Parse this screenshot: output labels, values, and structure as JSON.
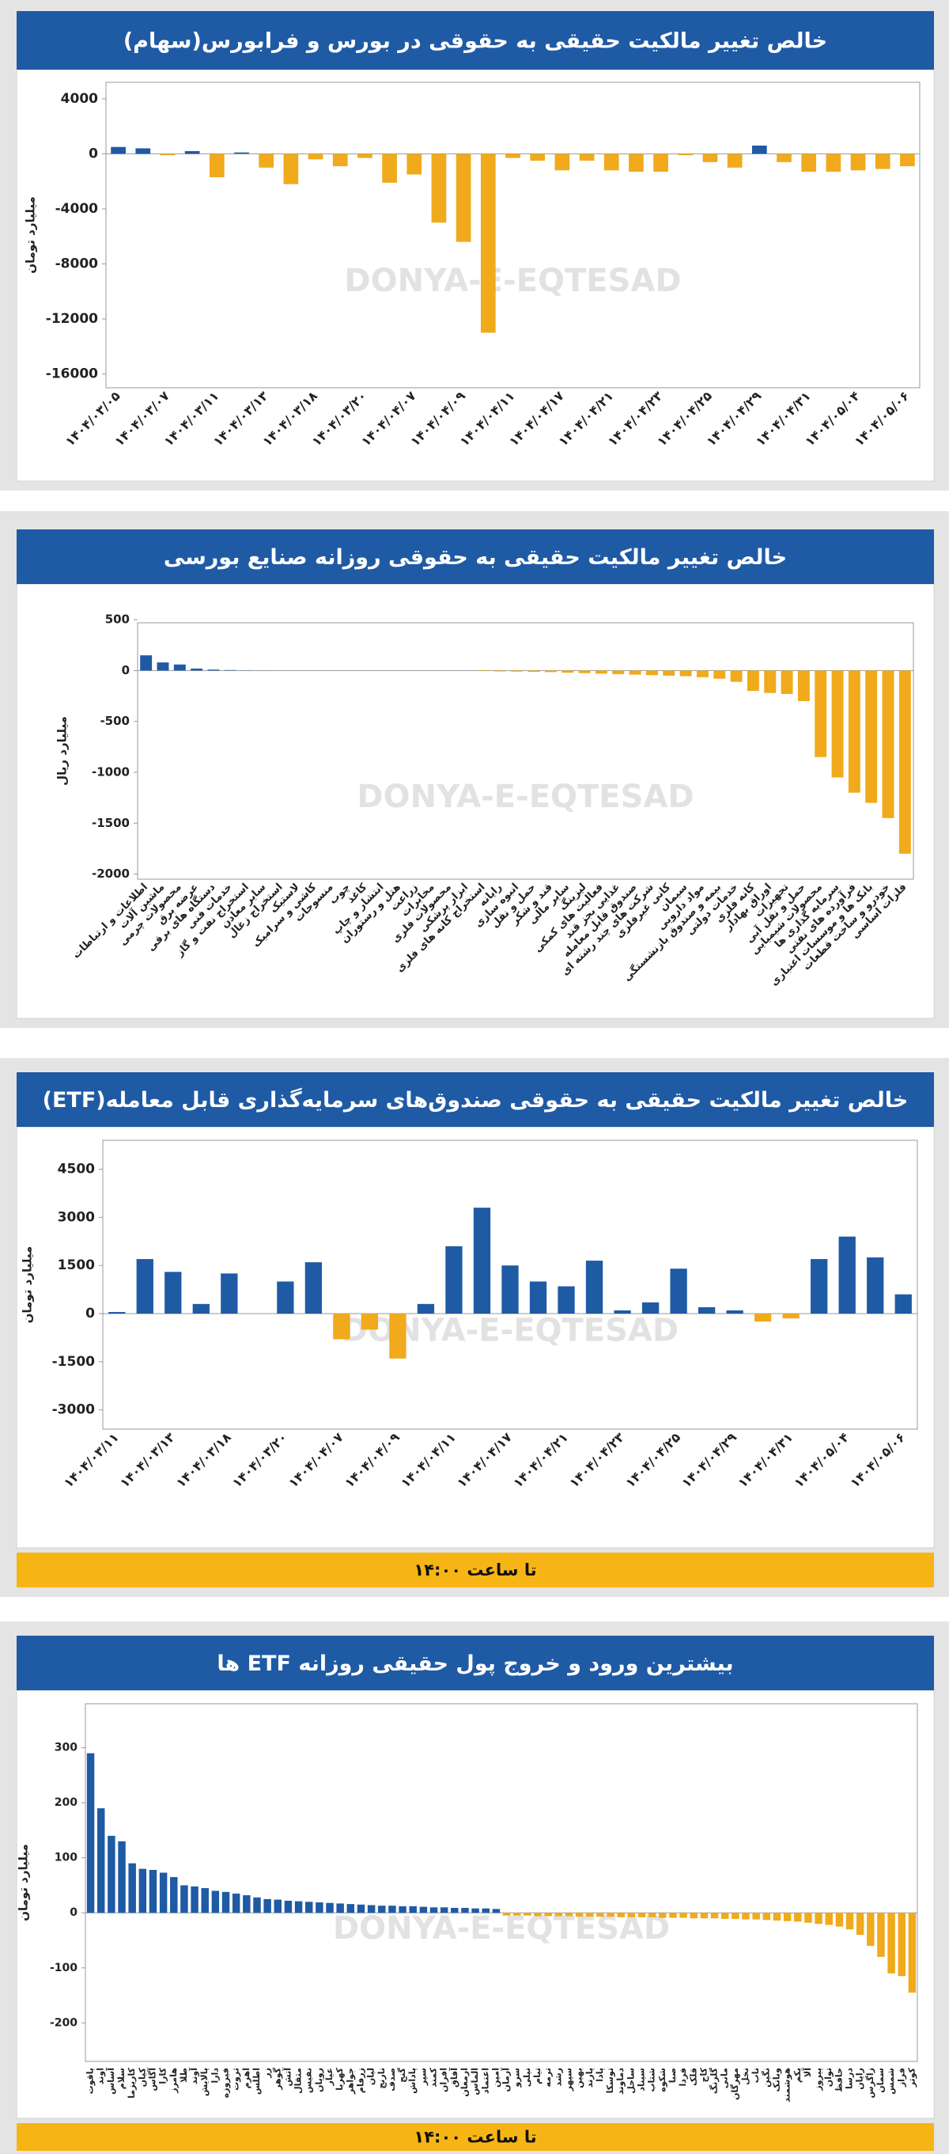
{
  "watermark": "DONYA-E-EQTESAD",
  "chart_data": [
    {
      "type": "bar",
      "title": "خالص تغییر مالکیت حقیقی به حقوقی در بورس و فرابورس(سهام)",
      "y_label": "میلیارد تومان",
      "categories": [
        "۱۴۰۴/۰۳/۰۵",
        null,
        "۱۴۰۴/۰۳/۰۷",
        null,
        "۱۴۰۴/۰۳/۱۱",
        null,
        "۱۴۰۴/۰۳/۱۳",
        null,
        "۱۴۰۴/۰۳/۱۸",
        null,
        "۱۴۰۴/۰۳/۲۰",
        null,
        "۱۴۰۴/۰۴/۰۷",
        null,
        "۱۴۰۴/۰۴/۰۹",
        null,
        "۱۴۰۴/۰۴/۱۱",
        null,
        "۱۴۰۴/۰۴/۱۷",
        null,
        "۱۴۰۴/۰۴/۲۱",
        null,
        "۱۴۰۴/۰۴/۲۳",
        null,
        "۱۴۰۴/۰۴/۲۵",
        null,
        "۱۴۰۴/۰۴/۲۹",
        null,
        "۱۴۰۴/۰۴/۳۱",
        null,
        "۱۴۰۴/۰۵/۰۴",
        null,
        "۱۴۰۴/۰۵/۰۶"
      ],
      "values": [
        500,
        400,
        -100,
        200,
        -1700,
        100,
        -1000,
        -2200,
        -400,
        -900,
        -300,
        -2100,
        -1500,
        -5000,
        -6400,
        -13000,
        -300,
        -500,
        -1200,
        -500,
        -1200,
        -1300,
        -1300,
        -100,
        -600,
        -1000,
        600,
        -600,
        -1300,
        -1300,
        -1200,
        -1100,
        -900
      ],
      "positive_color": "#1f5aa5",
      "negative_color": "#f0aa1c",
      "ylim": [
        -17000,
        5200
      ],
      "yticks": [
        4000,
        0,
        -4000,
        -8000,
        -12000,
        -16000
      ]
    },
    {
      "type": "bar",
      "title": "خالص تغییر مالکیت حقیقی به حقوقی روزانه صنایع بورسی",
      "y_label": "میلیارد ریال",
      "categories": [
        "اطلاعات و ارتباطات",
        "ماشین آلات",
        "محصولات چرمی",
        "عرضه برق",
        "دستگاه های برقی",
        "خدمات فنی",
        "استخراج نفت و گاز",
        "سایر معادن",
        "استخراج زغال",
        "لاستیک",
        "کاشی و سرامیک",
        "منسوجات",
        "چوب",
        "کاغذ",
        "انتشار و چاپ",
        "هتل و رستوران",
        "زراعت",
        "مخابرات",
        "محصولات فلزی",
        "ابزار پزشکی",
        "استخراج کانه های فلزی",
        "رایانه",
        "انبوه سازی",
        "حمل و نقل",
        "قند و شکر",
        "سایر مالی",
        "لیزینگ",
        "فعالیت های کمکی",
        "غذایی بجز قند",
        "صندوق قابل معامله",
        "شرکت های چند رشته ای",
        "کانی غیرفلزی",
        "سیمان",
        "مواد دارویی",
        "بیمه و صندوق بازنشستگی",
        "خدمات دولتی",
        "کانه فلزی",
        "اوراق بهادار",
        "تجهیزات",
        "حمل و نقل آبی",
        "محصولات شیمیایی",
        "سرمایه گذاری ها",
        "فرآورده های نفتی",
        "بانک ها و موسسات اعتباری",
        "خودرو و ساخت قطعات",
        "فلزات اساسی"
      ],
      "values": [
        150,
        80,
        60,
        20,
        10,
        5,
        2,
        1,
        0,
        0,
        0,
        0,
        0,
        0,
        0,
        0,
        0,
        0,
        0,
        0,
        -5,
        -8,
        -10,
        -12,
        -15,
        -20,
        -25,
        -30,
        -35,
        -40,
        -45,
        -50,
        -55,
        -65,
        -80,
        -110,
        -200,
        -220,
        -230,
        -300,
        -850,
        -1050,
        -1200,
        -1300,
        -1450,
        -1800
      ],
      "positive_color": "#1f5aa5",
      "negative_color": "#f0aa1c",
      "ylim": [
        -2050,
        470
      ],
      "yticks": [
        500,
        0,
        -500,
        -1000,
        -1500,
        -2000
      ]
    },
    {
      "type": "bar",
      "title": "خالص تغییر مالکیت حقیقی به حقوقی صندوق‌های سرمایه‌گذاری قابل معامله(ETF)",
      "y_label": "میلیارد تومان",
      "categories": [
        "۱۴۰۴/۰۳/۱۱",
        null,
        "۱۴۰۴/۰۳/۱۳",
        null,
        "۱۴۰۴/۰۳/۱۸",
        null,
        "۱۴۰۴/۰۳/۲۰",
        null,
        "۱۴۰۴/۰۴/۰۷",
        null,
        "۱۴۰۴/۰۴/۰۹",
        null,
        "۱۴۰۴/۰۴/۱۱",
        null,
        "۱۴۰۴/۰۴/۱۷",
        null,
        "۱۴۰۴/۰۴/۲۱",
        null,
        "۱۴۰۴/۰۴/۲۳",
        null,
        "۱۴۰۴/۰۴/۲۵",
        null,
        "۱۴۰۴/۰۴/۲۹",
        null,
        "۱۴۰۴/۰۴/۳۱",
        null,
        "۱۴۰۴/۰۵/۰۴",
        null,
        "۱۴۰۴/۰۵/۰۶"
      ],
      "values": [
        50,
        1700,
        1300,
        300,
        1250,
        0,
        1000,
        1600,
        -800,
        -500,
        -1400,
        300,
        2100,
        3300,
        1500,
        1000,
        850,
        1650,
        100,
        350,
        1400,
        200,
        100,
        -250,
        -150,
        1700,
        2400,
        1750,
        600
      ],
      "positive_color": "#1f5aa5",
      "negative_color": "#f0aa1c",
      "ylim": [
        -3600,
        5400
      ],
      "yticks": [
        4500,
        3000,
        1500,
        0,
        -1500,
        -3000
      ],
      "footer": "تا ساعت ۱۴:۰۰"
    },
    {
      "type": "bar",
      "title": "بیشترین ورود و خروج پول حقیقی روزانه ETF ها",
      "y_label": "میلیارد تومان",
      "categories": [
        "یاقوت",
        "اوند",
        "آساس",
        "سلام",
        "کاریزما",
        "کیان",
        "آگاس",
        "کارا",
        "هامرز",
        "طلا",
        "آوند",
        "پالایش",
        "دارا",
        "فیروزه",
        "ثروت",
        "اهرم",
        "اطلس",
        "زر",
        "گوهر",
        "آتش",
        "مثقال",
        "نفیس",
        "رویان",
        "عیار",
        "کهربا",
        "جواهر",
        "زرفام",
        "لیان",
        "نارنج",
        "صدف",
        "گنج",
        "پاداش",
        "سپر",
        "کمند",
        "افران",
        "آفاق",
        "ارمغان",
        "الماس",
        "اعتماد",
        "امین",
        "آرمان",
        "سرو",
        "نیلی",
        "تیام",
        "ترمه",
        "رشد",
        "سپهر",
        "بهین",
        "پارند",
        "پادا",
        "توسکا",
        "دماوند",
        "ساحل",
        "سیناد",
        "شتاب",
        "شکوه",
        "صبا",
        "فردا",
        "قلک",
        "کاج",
        "گلرنگ",
        "مانی",
        "مهرگان",
        "نخل",
        "ناب",
        "نگین",
        "وبانک",
        "هوشمند",
        "یکم",
        "آلا",
        "پیروز",
        "توان",
        "حافظ",
        "درسا",
        "رایان",
        "زاگرس",
        "سمان",
        "شمس",
        "فراز",
        "کوثر"
      ],
      "values": [
        290,
        190,
        140,
        130,
        90,
        80,
        78,
        73,
        65,
        50,
        48,
        45,
        40,
        38,
        35,
        32,
        28,
        25,
        24,
        22,
        21,
        20,
        19,
        18,
        17,
        16,
        15,
        14,
        13,
        13,
        12,
        12,
        11,
        10,
        10,
        9,
        9,
        8,
        8,
        7,
        -5,
        -5,
        -5,
        -6,
        -6,
        -6,
        -6,
        -7,
        -7,
        -7,
        -7,
        -8,
        -8,
        -8,
        -8,
        -9,
        -9,
        -9,
        -10,
        -10,
        -10,
        -11,
        -11,
        -12,
        -12,
        -13,
        -14,
        -15,
        -16,
        -18,
        -20,
        -22,
        -25,
        -30,
        -40,
        -60,
        -80,
        -110,
        -115,
        -145
      ],
      "positive_color": "#1f5aa5",
      "negative_color": "#f0aa1c",
      "ylim": [
        -270,
        380
      ],
      "yticks": [
        300,
        200,
        100,
        0,
        -100,
        -200
      ],
      "footer": "تا ساعت ۱۴:۰۰"
    }
  ]
}
